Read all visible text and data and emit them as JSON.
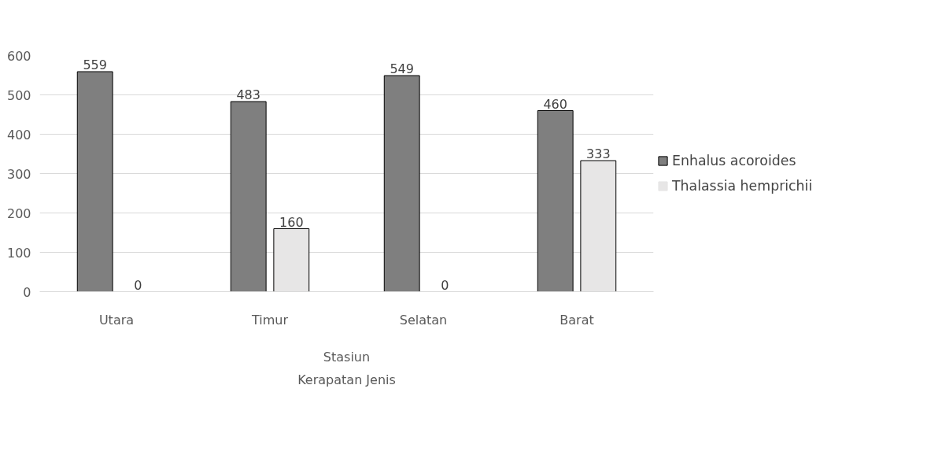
{
  "chart_data": {
    "type": "bar",
    "categories": [
      "Utara",
      "Timur",
      "Selatan",
      "Barat"
    ],
    "series": [
      {
        "name": "Enhalus acoroides",
        "color": "#7f7f7f",
        "values": [
          559,
          483,
          549,
          460
        ]
      },
      {
        "name": "Thalassia hemprichii",
        "color": "#e7e6e6",
        "values": [
          0,
          160,
          0,
          333
        ]
      }
    ],
    "xlabel": "Stasiun",
    "annotations": [
      "Kerapatan Jenis"
    ],
    "ylim": [
      0,
      600
    ],
    "yticks": [
      0,
      100,
      200,
      300,
      400,
      500,
      600
    ],
    "grid": "y",
    "legend": "right",
    "data_labels": true
  }
}
